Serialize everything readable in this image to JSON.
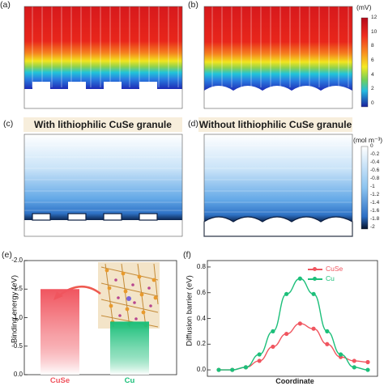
{
  "panels": {
    "a": {
      "label": "(a)"
    },
    "b": {
      "label": "(b)"
    },
    "c": {
      "label": "(c)",
      "title": "With lithiophilic CuSe granule"
    },
    "d": {
      "label": "(d)",
      "title": "Without lithiophilic CuSe granule"
    },
    "e": {
      "label": "(e)"
    },
    "f": {
      "label": "(f)"
    }
  },
  "colorbars": {
    "potential": {
      "unit": "(mV)",
      "ticks": [
        "12",
        "10",
        "8",
        "6",
        "4",
        "2",
        "0"
      ]
    },
    "concentration": {
      "unit": "(mol m⁻³)",
      "ticks": [
        "0",
        "-0.2",
        "-0.4",
        "-0.6",
        "-0.8",
        "-1",
        "-1.2",
        "-1.4",
        "-1.6",
        "-1.8",
        "-2"
      ]
    }
  },
  "colors": {
    "cuse": "#f0555f",
    "cu": "#1cbf7a",
    "arrow": "#ee5a50",
    "banner_bg": "#f7eedc"
  },
  "chart_data": [
    {
      "id": "e",
      "type": "bar",
      "categories": [
        "CuSe",
        "Cu"
      ],
      "values": [
        -1.5,
        -0.93
      ],
      "ylabel": "Binding energy (eV)",
      "ylim": [
        0,
        -2.0
      ],
      "yticks": [
        "-2.0",
        "-1.5",
        "-1.0",
        "-0.5",
        "0.0"
      ],
      "colors": [
        "#f0555f",
        "#1cbf7a"
      ]
    },
    {
      "id": "f",
      "type": "line",
      "xlabel": "Coordinate",
      "ylabel": "Diffusion barrier (eV)",
      "ylim": [
        -0.05,
        0.85
      ],
      "yticks": [
        "0.0",
        "0.2",
        "0.4",
        "0.6",
        "0.8"
      ],
      "legend": "top-right",
      "series": [
        {
          "name": "CuSe",
          "color": "#f0555f",
          "values": [
            0.0,
            0.0,
            0.02,
            0.07,
            0.18,
            0.28,
            0.36,
            0.32,
            0.2,
            0.1,
            0.07,
            0.06
          ]
        },
        {
          "name": "Cu",
          "color": "#1cbf7a",
          "values": [
            0.0,
            0.0,
            0.02,
            0.12,
            0.3,
            0.59,
            0.71,
            0.59,
            0.3,
            0.12,
            0.02,
            0.0
          ]
        }
      ]
    }
  ]
}
